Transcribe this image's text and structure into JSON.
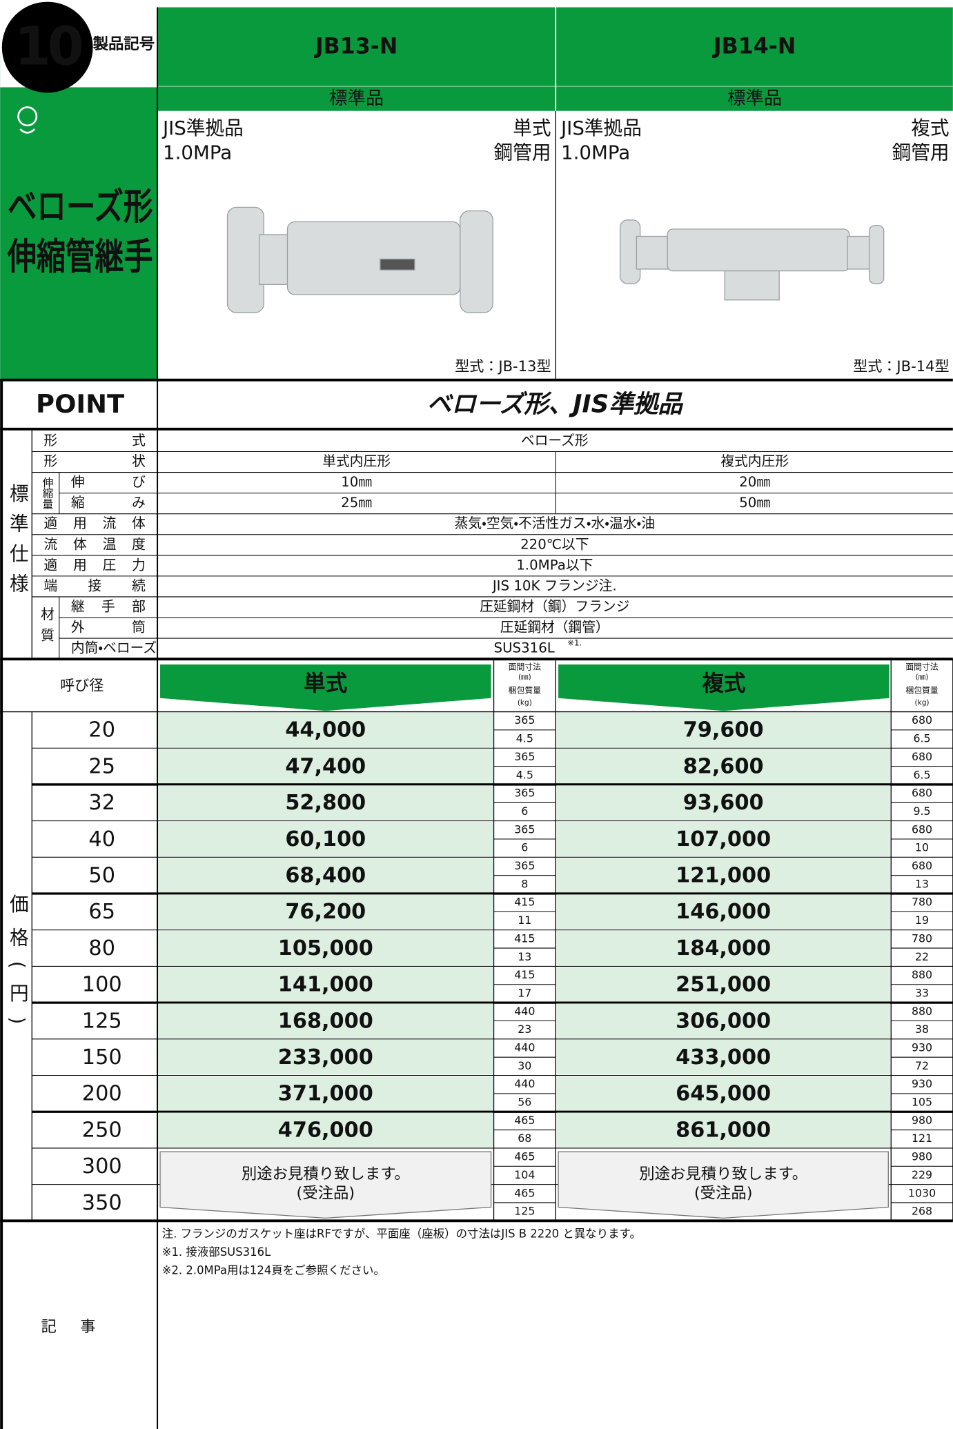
{
  "header": {
    "number": "10",
    "code_label": "製品記号",
    "models": [
      "JB13-N",
      "JB14-N"
    ],
    "grade": "標準品",
    "category": [
      "ベローズ形",
      "伸縮管継手"
    ]
  },
  "products": [
    {
      "left": [
        "JIS準拠品",
        "1.0MPa"
      ],
      "right": [
        "単式",
        "鋼管用"
      ],
      "caption": "型式：JB-13型"
    },
    {
      "left": [
        "JIS準拠品",
        "1.0MPa"
      ],
      "right": [
        "複式",
        "鋼管用"
      ],
      "caption": "型式：JB-14型"
    }
  ],
  "point": {
    "label": "POINT",
    "text": "ベローズ形、JIS準拠品"
  },
  "specs": {
    "group": "標準仕様",
    "expansion_group": "伸縮量",
    "material_group": "材質",
    "rows": [
      {
        "label": "形式",
        "values": [
          "ベローズ形"
        ]
      },
      {
        "label": "形状",
        "values": [
          "単式内圧形",
          "複式内圧形"
        ]
      },
      {
        "label": "伸び",
        "values": [
          "10㎜",
          "20㎜"
        ]
      },
      {
        "label": "縮み",
        "values": [
          "25㎜",
          "50㎜"
        ]
      },
      {
        "label": "適用流体",
        "values": [
          "蒸気・空気・不活性ガス・水・温水・油"
        ]
      },
      {
        "label": "流体温度",
        "values": [
          "220℃以下"
        ]
      },
      {
        "label": "適用圧力",
        "values": [
          "1.0MPa以下"
        ]
      },
      {
        "label": "端接続",
        "values": [
          "JIS 10K フランジ注."
        ]
      },
      {
        "label": "継手部",
        "values": [
          "圧延鋼材（鋼）フランジ"
        ]
      },
      {
        "label": "外筒",
        "values": [
          "圧延鋼材（鋼管）"
        ]
      },
      {
        "label": "内筒・ベローズ",
        "values": [
          "SUS316L"
        ],
        "sup": "※1."
      }
    ]
  },
  "prices": {
    "group": "価格(円)",
    "size_label": "呼び径",
    "types": [
      "単式",
      "複式"
    ],
    "face_label": "面間寸法",
    "face_unit": "(㎜)",
    "mass_label": "梱包質量",
    "mass_unit": "(kg)",
    "quote_note": [
      "別途お見積り致します。",
      "(受注品)"
    ],
    "rows": [
      {
        "size": "20",
        "single": {
          "price": "44,000",
          "face": "365",
          "mass": "4.5"
        },
        "double": {
          "price": "79,600",
          "face": "680",
          "mass": "6.5"
        }
      },
      {
        "size": "25",
        "single": {
          "price": "47,400",
          "face": "365",
          "mass": "4.5"
        },
        "double": {
          "price": "82,600",
          "face": "680",
          "mass": "6.5"
        }
      },
      {
        "size": "32",
        "single": {
          "price": "52,800",
          "face": "365",
          "mass": "6"
        },
        "double": {
          "price": "93,600",
          "face": "680",
          "mass": "9.5"
        }
      },
      {
        "size": "40",
        "single": {
          "price": "60,100",
          "face": "365",
          "mass": "6"
        },
        "double": {
          "price": "107,000",
          "face": "680",
          "mass": "10"
        }
      },
      {
        "size": "50",
        "single": {
          "price": "68,400",
          "face": "365",
          "mass": "8"
        },
        "double": {
          "price": "121,000",
          "face": "680",
          "mass": "13"
        }
      },
      {
        "size": "65",
        "single": {
          "price": "76,200",
          "face": "415",
          "mass": "11"
        },
        "double": {
          "price": "146,000",
          "face": "780",
          "mass": "19"
        }
      },
      {
        "size": "80",
        "single": {
          "price": "105,000",
          "face": "415",
          "mass": "13"
        },
        "double": {
          "price": "184,000",
          "face": "780",
          "mass": "22"
        }
      },
      {
        "size": "100",
        "single": {
          "price": "141,000",
          "face": "415",
          "mass": "17"
        },
        "double": {
          "price": "251,000",
          "face": "880",
          "mass": "33"
        }
      },
      {
        "size": "125",
        "single": {
          "price": "168,000",
          "face": "440",
          "mass": "23"
        },
        "double": {
          "price": "306,000",
          "face": "880",
          "mass": "38"
        }
      },
      {
        "size": "150",
        "single": {
          "price": "233,000",
          "face": "440",
          "mass": "30"
        },
        "double": {
          "price": "433,000",
          "face": "930",
          "mass": "72"
        }
      },
      {
        "size": "200",
        "single": {
          "price": "371,000",
          "face": "440",
          "mass": "56"
        },
        "double": {
          "price": "645,000",
          "face": "930",
          "mass": "105"
        }
      },
      {
        "size": "250",
        "single": {
          "price": "476,000",
          "face": "465",
          "mass": "68"
        },
        "double": {
          "price": "861,000",
          "face": "980",
          "mass": "121"
        }
      },
      {
        "size": "300",
        "single": {
          "face": "465",
          "mass": "104"
        },
        "double": {
          "face": "980",
          "mass": "229"
        }
      },
      {
        "size": "350",
        "single": {
          "face": "465",
          "mass": "125"
        },
        "double": {
          "face": "1030",
          "mass": "268"
        }
      }
    ]
  },
  "notes": {
    "label": "記事",
    "lines": [
      "注. フランジのガスケット座はRFですが、平面座（座板）の寸法はJIS B 2220 と異なります。",
      "※1. 接液部SUS316L",
      "※2. 2.0MPa用は124頁をご参照ください。"
    ]
  }
}
